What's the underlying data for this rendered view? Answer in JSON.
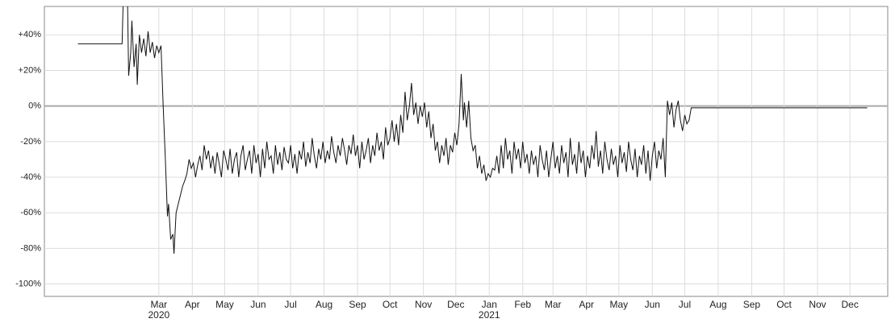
{
  "chart_data": {
    "type": "line",
    "x": [
      0,
      41,
      42,
      46,
      47,
      49,
      50,
      52,
      54,
      55,
      57,
      59,
      61,
      63,
      65,
      67,
      69,
      71,
      73,
      75,
      77,
      79,
      81,
      83,
      84,
      86,
      88,
      89,
      91,
      93,
      95,
      97,
      99,
      101,
      103,
      105,
      107,
      109,
      111,
      113,
      115,
      117,
      119,
      121,
      123,
      125,
      127,
      129,
      131,
      133,
      135,
      137,
      139,
      141,
      143,
      145,
      147,
      149,
      151,
      153,
      155,
      157,
      159,
      161,
      163,
      165,
      167,
      169,
      171,
      173,
      175,
      177,
      179,
      181,
      183,
      185,
      187,
      189,
      191,
      193,
      195,
      197,
      199,
      201,
      203,
      205,
      207,
      209,
      211,
      213,
      215,
      217,
      219,
      221,
      223,
      225,
      227,
      229,
      231,
      233,
      235,
      237,
      239,
      241,
      243,
      245,
      247,
      249,
      251,
      253,
      255,
      257,
      259,
      261,
      263,
      265,
      267,
      269,
      271,
      273,
      275,
      277,
      279,
      281,
      283,
      285,
      287,
      289,
      291,
      293,
      295,
      297,
      299,
      301,
      303,
      305,
      307,
      309,
      311,
      313,
      315,
      317,
      319,
      321,
      323,
      325,
      327,
      329,
      331,
      333,
      335,
      337,
      339,
      341,
      343,
      345,
      347,
      349,
      351,
      353,
      355,
      357,
      358,
      360,
      362,
      364,
      366,
      368,
      370,
      372,
      374,
      376,
      378,
      380,
      382,
      384,
      386,
      388,
      390,
      392,
      394,
      396,
      398,
      400,
      402,
      404,
      406,
      408,
      410,
      412,
      414,
      416,
      418,
      420,
      422,
      424,
      426,
      428,
      430,
      432,
      434,
      436,
      438,
      440,
      442,
      444,
      446,
      448,
      450,
      452,
      454,
      456,
      458,
      460,
      462,
      464,
      466,
      468,
      470,
      472,
      474,
      476,
      478,
      480,
      482,
      484,
      486,
      488,
      490,
      492,
      494,
      496,
      498,
      500,
      502,
      504,
      506,
      508,
      510,
      512,
      514,
      516,
      518,
      520,
      522,
      524,
      526,
      528,
      530,
      532,
      534,
      536,
      538,
      540,
      542,
      544,
      546,
      548,
      550,
      552,
      554,
      556,
      558,
      560,
      562,
      564,
      566,
      568,
      731
    ],
    "series": [
      {
        "color": "#111111",
        "values": [
          35,
          35,
          60,
          60,
          17,
          30,
          48,
          22,
          35,
          12,
          40,
          30,
          38,
          28,
          42,
          30,
          36,
          27,
          34,
          30,
          34,
          0,
          -30,
          -62,
          -55,
          -75,
          -72,
          -83,
          -60,
          -55,
          -50,
          -45,
          -42,
          -38,
          -30,
          -35,
          -32,
          -40,
          -33,
          -28,
          -36,
          -22,
          -30,
          -25,
          -35,
          -28,
          -38,
          -26,
          -33,
          -40,
          -25,
          -30,
          -36,
          -24,
          -38,
          -30,
          -26,
          -40,
          -28,
          -22,
          -36,
          -30,
          -25,
          -38,
          -22,
          -32,
          -27,
          -40,
          -24,
          -35,
          -20,
          -30,
          -28,
          -38,
          -22,
          -33,
          -26,
          -36,
          -23,
          -30,
          -32,
          -22,
          -35,
          -27,
          -38,
          -25,
          -30,
          -20,
          -34,
          -26,
          -32,
          -18,
          -28,
          -35,
          -24,
          -30,
          -20,
          -32,
          -25,
          -30,
          -17,
          -26,
          -32,
          -22,
          -28,
          -18,
          -25,
          -33,
          -22,
          -27,
          -16,
          -28,
          -22,
          -35,
          -20,
          -30,
          -25,
          -18,
          -32,
          -22,
          -28,
          -15,
          -25,
          -20,
          -30,
          -12,
          -22,
          -18,
          -8,
          -20,
          -10,
          -22,
          -5,
          -15,
          8,
          -8,
          0,
          13,
          -5,
          2,
          -10,
          0,
          -6,
          2,
          -12,
          -3,
          -18,
          -10,
          -25,
          -20,
          -32,
          -22,
          -28,
          -18,
          -33,
          -22,
          -26,
          -15,
          -22,
          -10,
          18,
          -8,
          2,
          -12,
          3,
          -18,
          -25,
          -22,
          -35,
          -28,
          -38,
          -33,
          -42,
          -38,
          -40,
          -35,
          -36,
          -28,
          -38,
          -22,
          -35,
          -18,
          -30,
          -25,
          -38,
          -20,
          -30,
          -24,
          -35,
          -20,
          -32,
          -27,
          -38,
          -25,
          -33,
          -28,
          -40,
          -22,
          -30,
          -36,
          -25,
          -40,
          -30,
          -20,
          -35,
          -28,
          -38,
          -22,
          -32,
          -26,
          -40,
          -18,
          -33,
          -27,
          -38,
          -20,
          -32,
          -25,
          -40,
          -28,
          -35,
          -22,
          -30,
          -14,
          -34,
          -25,
          -38,
          -20,
          -30,
          -36,
          -24,
          -33,
          -28,
          -40,
          -22,
          -32,
          -26,
          -37,
          -20,
          -30,
          -36,
          -24,
          -40,
          -28,
          -33,
          -22,
          -38,
          -25,
          -42,
          -28,
          -20,
          -35,
          -25,
          -30,
          -18,
          -40,
          3,
          -5,
          2,
          -12,
          -2,
          3,
          -8,
          -14,
          -5,
          -10,
          -8,
          -1,
          -1
        ]
      }
    ],
    "xlim": [
      -31,
      750
    ],
    "xticks": [
      {
        "value": 75,
        "label": "Mar"
      },
      {
        "value": 106,
        "label": "Apr"
      },
      {
        "value": 136,
        "label": "May"
      },
      {
        "value": 167,
        "label": "Jun"
      },
      {
        "value": 197,
        "label": "Jul"
      },
      {
        "value": 228,
        "label": "Aug"
      },
      {
        "value": 259,
        "label": "Sep"
      },
      {
        "value": 289,
        "label": "Oct"
      },
      {
        "value": 320,
        "label": "Nov"
      },
      {
        "value": 350,
        "label": "Dec"
      },
      {
        "value": 381,
        "label": "Jan"
      },
      {
        "value": 412,
        "label": "Feb"
      },
      {
        "value": 440,
        "label": "Mar"
      },
      {
        "value": 471,
        "label": "Apr"
      },
      {
        "value": 501,
        "label": "May"
      },
      {
        "value": 532,
        "label": "Jun"
      },
      {
        "value": 562,
        "label": "Jul"
      },
      {
        "value": 593,
        "label": "Aug"
      },
      {
        "value": 624,
        "label": "Sep"
      },
      {
        "value": 654,
        "label": "Oct"
      },
      {
        "value": 685,
        "label": "Nov"
      },
      {
        "value": 715,
        "label": "Dec"
      }
    ],
    "year_labels": [
      {
        "value": 75,
        "label": "2020"
      },
      {
        "value": 381,
        "label": "2021"
      }
    ],
    "ylim": [
      -107,
      56
    ],
    "yticks": [
      {
        "value": 40,
        "label": "+40%"
      },
      {
        "value": 20,
        "label": "+20%"
      },
      {
        "value": 0,
        "label": "0%"
      },
      {
        "value": -20,
        "label": "-20%"
      },
      {
        "value": -40,
        "label": "-40%"
      },
      {
        "value": -60,
        "label": "-60%"
      },
      {
        "value": -80,
        "label": "-80%"
      },
      {
        "value": -100,
        "label": "-100%"
      }
    ],
    "grid": true
  }
}
